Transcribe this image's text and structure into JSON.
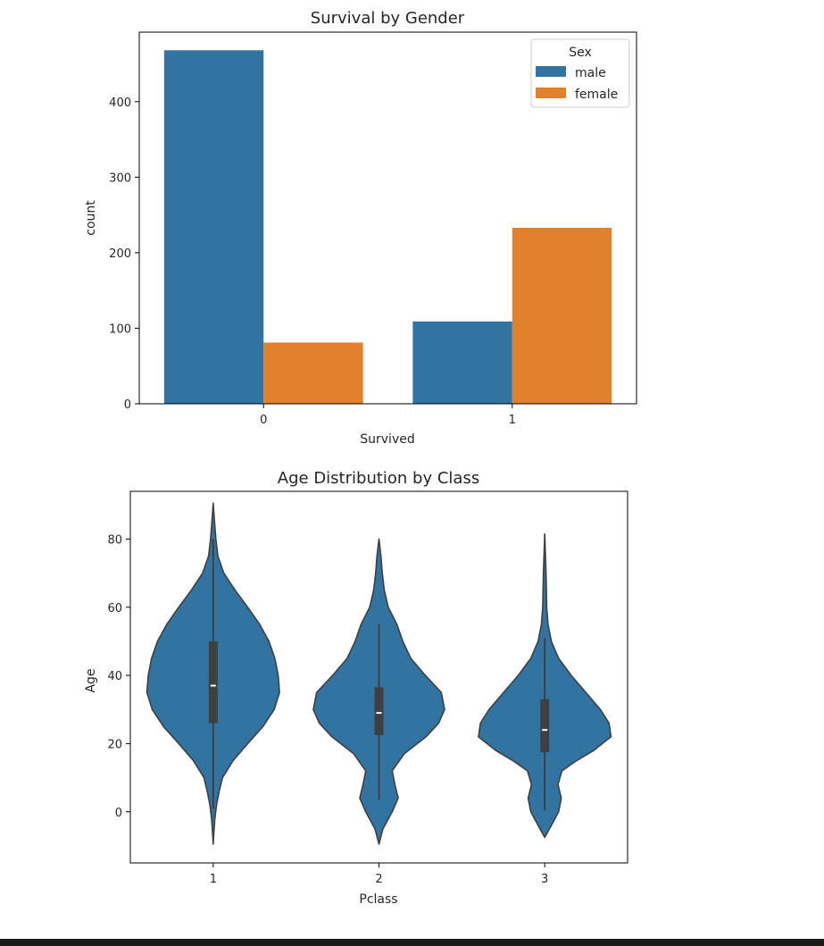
{
  "chart_data": [
    {
      "type": "bar",
      "title": "Survival by Gender",
      "xlabel": "Survived",
      "ylabel": "count",
      "categories": [
        "0",
        "1"
      ],
      "series": [
        {
          "name": "male",
          "values": [
            468,
            109
          ],
          "color": "#3274a1"
        },
        {
          "name": "female",
          "values": [
            81,
            233
          ],
          "color": "#e1812c"
        }
      ],
      "ylim": [
        0,
        492
      ],
      "yticks": [
        0,
        100,
        200,
        300,
        400
      ],
      "legend": {
        "title": "Sex",
        "placement": "top-right"
      },
      "grid": false
    },
    {
      "type": "violin",
      "title": "Age Distribution by Class",
      "xlabel": "Pclass",
      "ylabel": "Age",
      "categories": [
        "1",
        "2",
        "3"
      ],
      "color": "#3274a1",
      "ylim": [
        -15,
        94
      ],
      "yticks": [
        0,
        20,
        40,
        60,
        80
      ],
      "grid": false,
      "violins": [
        {
          "category": "1",
          "median": 37,
          "q1": 26,
          "q3": 50,
          "whisker_low": 0.9,
          "whisker_high": 80,
          "kde_min": -9.5,
          "kde_max": 90.5,
          "density": [
            [
              -9.5,
              0.0
            ],
            [
              -6,
              0.01
            ],
            [
              -2,
              0.025
            ],
            [
              2,
              0.05
            ],
            [
              6,
              0.09
            ],
            [
              10,
              0.14
            ],
            [
              15,
              0.3
            ],
            [
              20,
              0.52
            ],
            [
              25,
              0.75
            ],
            [
              30,
              0.92
            ],
            [
              35,
              1.0
            ],
            [
              40,
              0.98
            ],
            [
              45,
              0.93
            ],
            [
              50,
              0.84
            ],
            [
              55,
              0.7
            ],
            [
              60,
              0.52
            ],
            [
              65,
              0.33
            ],
            [
              70,
              0.16
            ],
            [
              75,
              0.07
            ],
            [
              80,
              0.04
            ],
            [
              85,
              0.02
            ],
            [
              90.5,
              0.0
            ]
          ]
        },
        {
          "category": "2",
          "median": 29,
          "q1": 22.5,
          "q3": 36.5,
          "whisker_low": 3.5,
          "whisker_high": 55,
          "kde_min": -9.5,
          "kde_max": 80,
          "density": [
            [
              -9.5,
              0.0
            ],
            [
              -5,
              0.06
            ],
            [
              0,
              0.2
            ],
            [
              4,
              0.29
            ],
            [
              8,
              0.24
            ],
            [
              12,
              0.2
            ],
            [
              17,
              0.38
            ],
            [
              22,
              0.71
            ],
            [
              26,
              0.9
            ],
            [
              30,
              0.99
            ],
            [
              35,
              0.94
            ],
            [
              40,
              0.7
            ],
            [
              45,
              0.48
            ],
            [
              50,
              0.36
            ],
            [
              55,
              0.27
            ],
            [
              60,
              0.14
            ],
            [
              65,
              0.08
            ],
            [
              70,
              0.05
            ],
            [
              75,
              0.03
            ],
            [
              80,
              0.0
            ]
          ]
        },
        {
          "category": "3",
          "median": 24,
          "q1": 17.5,
          "q3": 33,
          "whisker_low": 0.4,
          "whisker_high": 51,
          "kde_min": -7.5,
          "kde_max": 81.5,
          "density": [
            [
              -7.5,
              0.0
            ],
            [
              -4,
              0.1
            ],
            [
              0,
              0.21
            ],
            [
              4,
              0.25
            ],
            [
              8,
              0.2
            ],
            [
              12,
              0.26
            ],
            [
              15,
              0.48
            ],
            [
              18,
              0.74
            ],
            [
              22,
              1.0
            ],
            [
              26,
              0.97
            ],
            [
              30,
              0.84
            ],
            [
              35,
              0.62
            ],
            [
              40,
              0.4
            ],
            [
              45,
              0.21
            ],
            [
              50,
              0.1
            ],
            [
              55,
              0.05
            ],
            [
              60,
              0.03
            ],
            [
              70,
              0.02
            ],
            [
              81.5,
              0.0
            ]
          ]
        }
      ]
    }
  ]
}
